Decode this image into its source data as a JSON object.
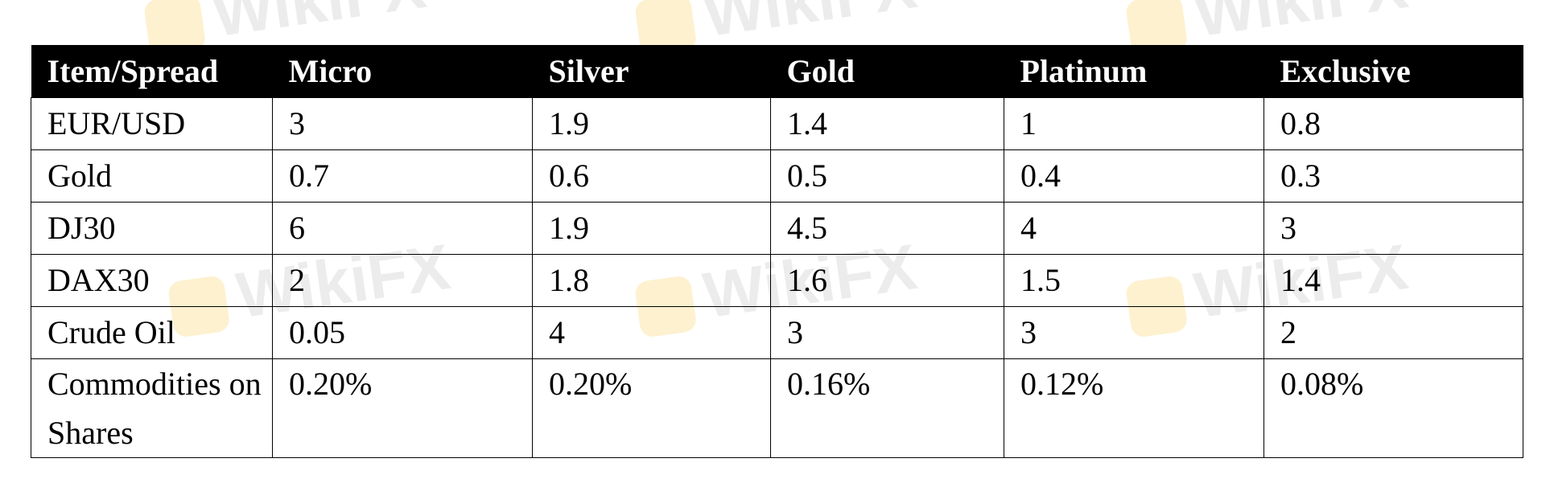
{
  "watermark": "WikiFX",
  "table": {
    "headers": [
      "Item/Spread",
      "Micro",
      "Silver",
      "Gold",
      "Platinum",
      "Exclusive"
    ],
    "rows": [
      [
        "EUR/USD",
        "3",
        "1.9",
        "1.4",
        "1",
        "0.8"
      ],
      [
        "Gold",
        "0.7",
        "0.6",
        "0.5",
        "0.4",
        "0.3"
      ],
      [
        "DJ30",
        "6",
        "1.9",
        "4.5",
        "4",
        "3"
      ],
      [
        "DAX30",
        "2",
        "1.8",
        "1.6",
        "1.5",
        "1.4"
      ],
      [
        "Crude Oil",
        "0.05",
        "4",
        "3",
        "3",
        "2"
      ],
      [
        "Commodities on Shares",
        "0.20%",
        "0.20%",
        "0.16%",
        "0.12%",
        "0.08%"
      ]
    ]
  }
}
